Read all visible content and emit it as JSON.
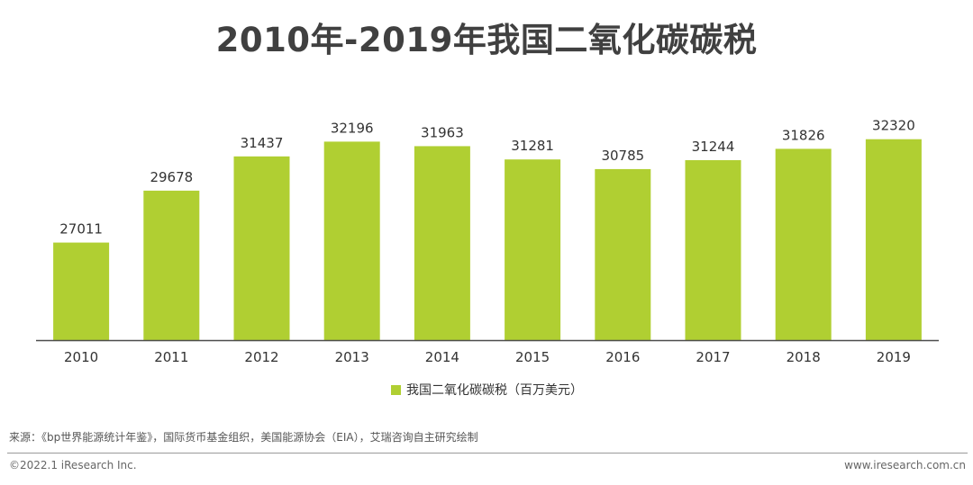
{
  "colors": {
    "bar": "#b0cf32",
    "axis": "#4d4d4d"
  },
  "footer": {
    "source": "来源：《bp世界能源统计年鉴》，国际货币基金组织，美国能源协会（EIA），艾瑞咨询自主研究绘制",
    "copyright": "©2022.1 iResearch Inc.",
    "website": "www.iresearch.com.cn"
  },
  "chart_data": {
    "type": "bar",
    "title": "2010年-2019年我国二氧化碳碳税",
    "categories": [
      "2010",
      "2011",
      "2012",
      "2013",
      "2014",
      "2015",
      "2016",
      "2017",
      "2018",
      "2019"
    ],
    "series": [
      {
        "name": "我国二氧化碳碳税（百万美元）",
        "values": [
          27011,
          29678,
          31437,
          32196,
          31963,
          31281,
          30785,
          31244,
          31826,
          32320
        ]
      }
    ],
    "xlabel": "",
    "ylabel": "",
    "ylim": [
      22000,
      33000
    ],
    "grid": false,
    "legend_position": "bottom-center",
    "data_labels": true
  }
}
